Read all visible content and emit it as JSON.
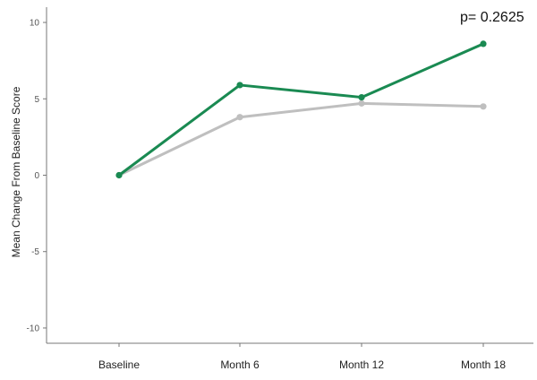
{
  "chart_data": {
    "type": "line",
    "title": "",
    "xlabel": "",
    "ylabel": "Mean Change From Baseline Score",
    "categories": [
      "Baseline",
      "Month 6",
      "Month 12",
      "Month 18"
    ],
    "ylim": [
      -11,
      11
    ],
    "yticks": [
      -10,
      -5,
      0,
      5,
      10
    ],
    "grid": false,
    "annotation": "p= 0.2625",
    "series": [
      {
        "color": "#1a8a52",
        "values": [
          0,
          5.9,
          5.1,
          8.6
        ]
      },
      {
        "color": "#bfbfbf",
        "values": [
          0,
          3.8,
          4.7,
          4.5
        ]
      }
    ]
  }
}
